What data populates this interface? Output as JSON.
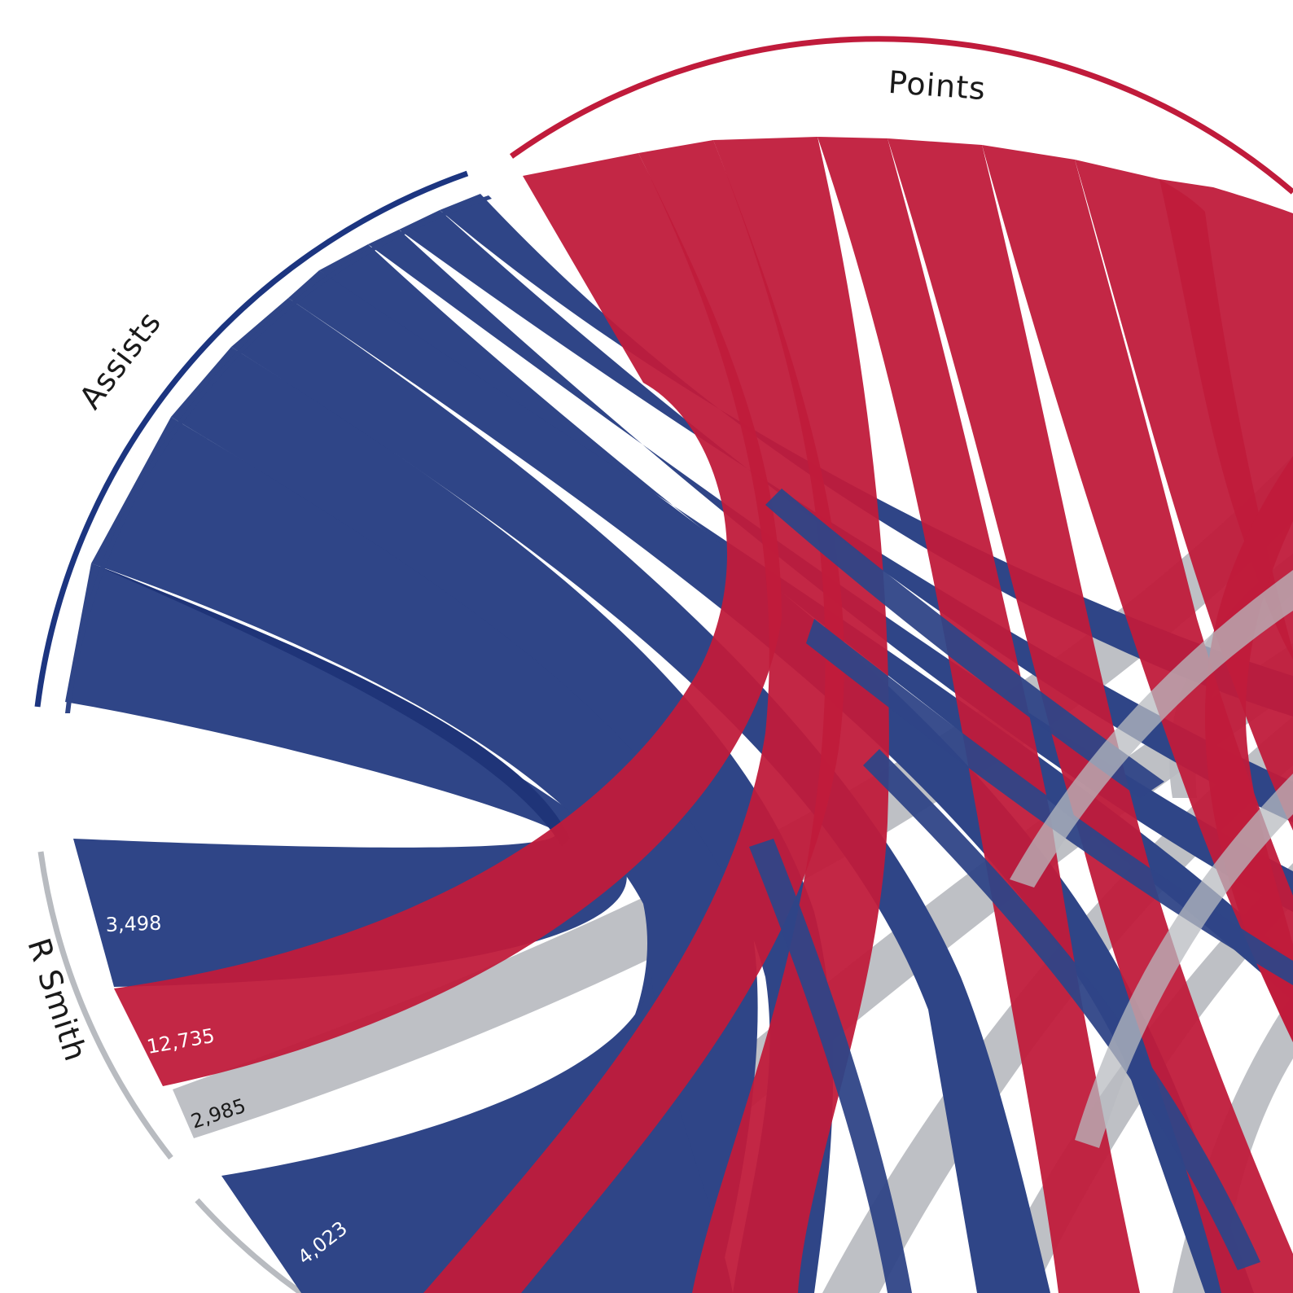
{
  "chart_data": {
    "type": "chord",
    "colors": {
      "assists": "#2f4587",
      "points": "#c01b3b",
      "rebounds": "#b8bbc0",
      "dark_assists": "#1f3478",
      "outer_assists": "#1c3580",
      "outer_points": "#c01b3b",
      "outer_player": "#b8bbc0"
    },
    "groups": {
      "assists": {
        "label": "Assists"
      },
      "points": {
        "label": "Points"
      },
      "player": {
        "label": "R Smith"
      }
    },
    "values": [
      {
        "label": "3,498",
        "value": 3498,
        "stat": "assists",
        "player": "R Smith"
      },
      {
        "label": "12,735",
        "value": 12735,
        "stat": "points",
        "player": "R Smith"
      },
      {
        "label": "2,985",
        "value": 2985,
        "stat": "rebounds",
        "player": "R Smith"
      },
      {
        "label": "4,023",
        "value": 4023,
        "stat": "assists",
        "player": ""
      }
    ]
  }
}
